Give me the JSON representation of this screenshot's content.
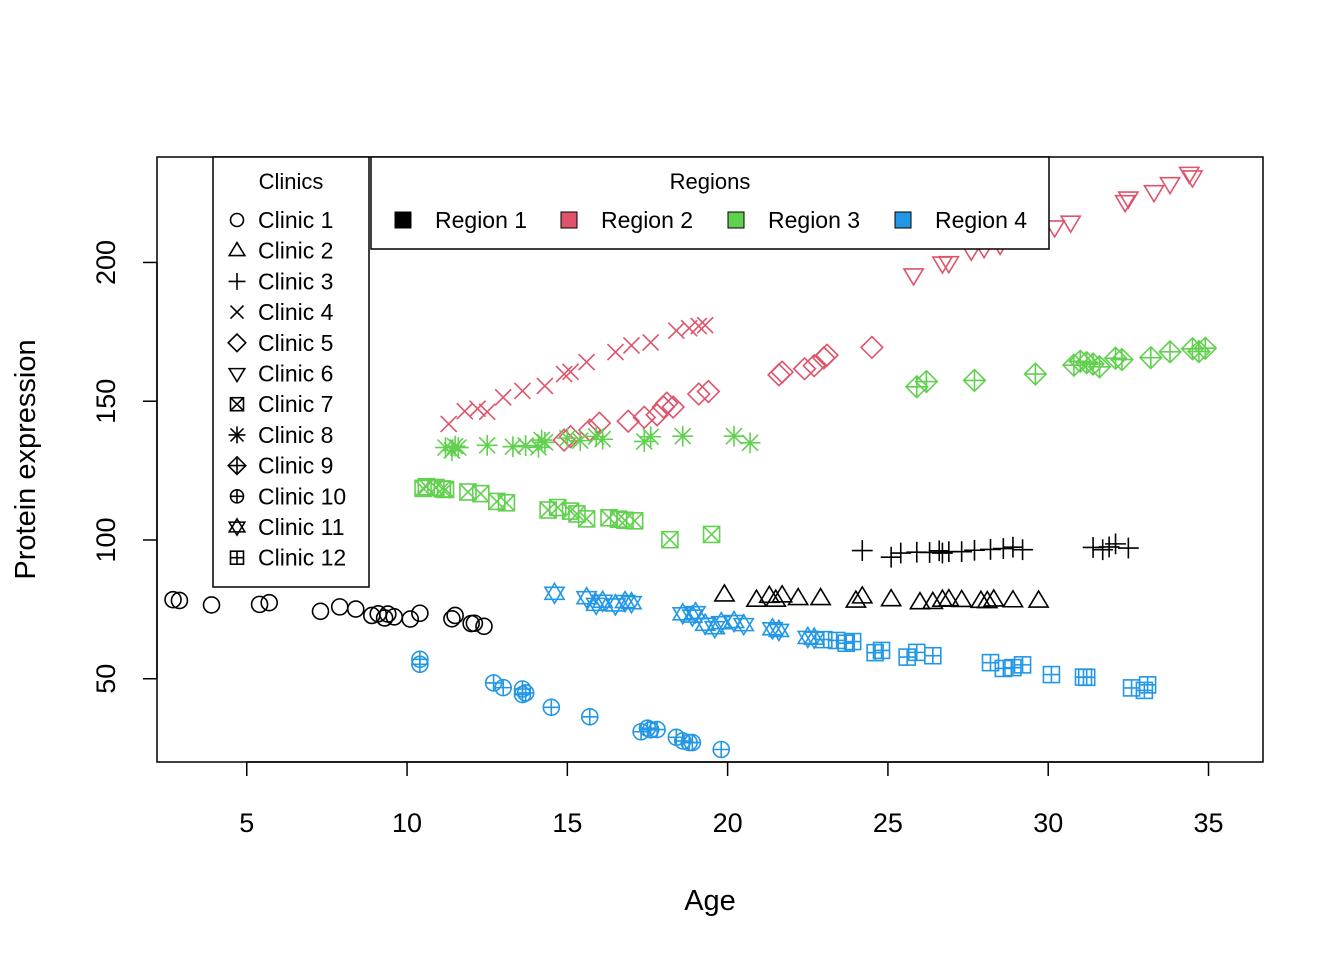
{
  "chart_data": {
    "type": "scatter",
    "xlabel": "Age",
    "ylabel": "Protein expression",
    "xlim": [
      2.2,
      36.7
    ],
    "ylim": [
      20,
      238
    ],
    "x_ticks": [
      5,
      10,
      15,
      20,
      25,
      30,
      35
    ],
    "y_ticks": [
      50,
      100,
      150,
      200
    ],
    "grid": false,
    "colors": {
      "Region 1": "#000000",
      "Region 2": "#DF536B",
      "Region 3": "#61D04F",
      "Region 4": "#2297E6"
    },
    "legend_clinics": {
      "title": "Clinics",
      "position": "top-left",
      "entries": [
        {
          "label": "Clinic 1",
          "symbol": "circle"
        },
        {
          "label": "Clinic 2",
          "symbol": "triangle-up"
        },
        {
          "label": "Clinic 3",
          "symbol": "plus"
        },
        {
          "label": "Clinic 4",
          "symbol": "cross"
        },
        {
          "label": "Clinic 5",
          "symbol": "diamond"
        },
        {
          "label": "Clinic 6",
          "symbol": "triangle-down"
        },
        {
          "label": "Clinic 7",
          "symbol": "square-cross"
        },
        {
          "label": "Clinic 8",
          "symbol": "asterisk"
        },
        {
          "label": "Clinic 9",
          "symbol": "diamond-plus"
        },
        {
          "label": "Clinic 10",
          "symbol": "circle-plus"
        },
        {
          "label": "Clinic 11",
          "symbol": "star-of-david"
        },
        {
          "label": "Clinic 12",
          "symbol": "square-plus"
        }
      ]
    },
    "legend_regions": {
      "title": "Regions",
      "position": "top",
      "entries": [
        "Region 1",
        "Region 2",
        "Region 3",
        "Region 4"
      ]
    },
    "series": [
      {
        "clinic": "Clinic 1",
        "region": "Region 1",
        "x": [
          2.7,
          2.9,
          3.9,
          5.4,
          5.7,
          7.3,
          7.9,
          8.4,
          8.9,
          9.1,
          9.3,
          9.4,
          9.6,
          10.1,
          10.4,
          11.4,
          11.5,
          12.0,
          12.1,
          12.4
        ],
        "y": [
          78.5,
          78.2,
          76.6,
          76.8,
          77.4,
          74.3,
          75.9,
          75.1,
          72.8,
          73.4,
          71.9,
          73.3,
          72.3,
          71.5,
          73.6,
          71.6,
          72.8,
          69.9,
          70.0,
          68.9
        ]
      },
      {
        "clinic": "Clinic 2",
        "region": "Region 1",
        "x": [
          19.9,
          20.9,
          21.3,
          21.5,
          21.7,
          22.2,
          22.9,
          24.0,
          24.2,
          25.1,
          26.0,
          26.4,
          26.7,
          26.9,
          27.3,
          27.9,
          28.1,
          28.3,
          28.9,
          29.7
        ],
        "y": [
          80.2,
          78.3,
          79.7,
          78.3,
          79.9,
          78.9,
          78.9,
          78.0,
          79.5,
          78.5,
          77.4,
          77.5,
          78.3,
          78.5,
          78.2,
          77.9,
          77.8,
          78.4,
          78.1,
          78.0
        ]
      },
      {
        "clinic": "Clinic 3",
        "region": "Region 1",
        "x": [
          24.2,
          25.1,
          25.4,
          25.9,
          26.3,
          26.6,
          26.7,
          26.9,
          27.3,
          27.7,
          28.2,
          28.6,
          28.9,
          29.2,
          31.4,
          31.7,
          31.9,
          32.1,
          32.5
        ],
        "y": [
          96.2,
          93.8,
          95.3,
          95.6,
          95.5,
          96.1,
          95.3,
          95.8,
          95.8,
          96.3,
          96.6,
          96.9,
          97.4,
          96.5,
          97.3,
          96.5,
          97.5,
          98.6,
          97.1
        ]
      },
      {
        "clinic": "Clinic 4",
        "region": "Region 2",
        "x": [
          11.3,
          11.8,
          12.2,
          12.5,
          13.0,
          13.6,
          14.3,
          14.9,
          15.1,
          15.6,
          16.5,
          17.0,
          17.6,
          18.4,
          18.8,
          19.1,
          19.3
        ],
        "y": [
          141.8,
          146.4,
          147.3,
          146.2,
          151.4,
          153.7,
          155.5,
          159.8,
          160.6,
          164.1,
          167.7,
          170.1,
          171.2,
          175.4,
          176.3,
          177.1,
          177.4
        ]
      },
      {
        "clinic": "Clinic 5",
        "region": "Region 2",
        "x": [
          14.9,
          15.1,
          15.7,
          16.0,
          16.9,
          17.4,
          17.8,
          18.0,
          18.1,
          18.3,
          19.1,
          19.4,
          21.6,
          21.7,
          22.4,
          22.7,
          23.0,
          23.1,
          24.5
        ],
        "y": [
          136.0,
          137.2,
          139.6,
          142.1,
          142.8,
          144.2,
          145.1,
          147.9,
          149.3,
          147.9,
          152.6,
          153.5,
          159.5,
          160.5,
          161.7,
          162.8,
          165.6,
          166.6,
          169.4
        ]
      },
      {
        "clinic": "Clinic 6",
        "region": "Region 2",
        "x": [
          25.8,
          26.7,
          26.9,
          27.6,
          28.0,
          28.5,
          29.2,
          30.2,
          30.7,
          32.4,
          32.5,
          33.3,
          33.8,
          34.4,
          34.5
        ],
        "y": [
          195.5,
          199.8,
          199.9,
          204.4,
          205.3,
          206.5,
          209.4,
          212.8,
          214.5,
          221.9,
          223.2,
          225.5,
          228.4,
          232.1,
          230.8
        ]
      },
      {
        "clinic": "Clinic 7",
        "region": "Region 3",
        "x": [
          10.5,
          10.6,
          10.9,
          11.1,
          11.2,
          11.9,
          12.3,
          12.8,
          13.1,
          14.4,
          14.7,
          15.1,
          15.3,
          15.6,
          16.3,
          16.6,
          16.8,
          17.1,
          18.2,
          19.5
        ],
        "y": [
          118.6,
          119.2,
          118.9,
          118.4,
          118.2,
          117.3,
          116.7,
          113.9,
          113.4,
          110.8,
          111.7,
          110.4,
          109.4,
          107.6,
          108.0,
          107.5,
          107.1,
          106.9,
          100.1,
          102.0
        ]
      },
      {
        "clinic": "Clinic 8",
        "region": "Region 3",
        "x": [
          11.2,
          11.4,
          11.5,
          11.6,
          12.5,
          13.3,
          13.7,
          14.1,
          14.2,
          14.3,
          15.0,
          15.4,
          15.9,
          16.1,
          17.4,
          17.6,
          18.6,
          20.2,
          20.7
        ],
        "y": [
          133.3,
          132.2,
          133.8,
          133.3,
          134.1,
          133.6,
          134.0,
          133.4,
          136.0,
          135.2,
          136.7,
          135.8,
          137.3,
          136.3,
          135.5,
          137.2,
          137.4,
          137.4,
          135.0
        ]
      },
      {
        "clinic": "Clinic 9",
        "region": "Region 3",
        "x": [
          25.9,
          26.2,
          27.7,
          29.6,
          30.8,
          31.0,
          31.2,
          31.4,
          31.6,
          32.1,
          32.3,
          33.2,
          33.8,
          34.5,
          34.7,
          34.9
        ],
        "y": [
          155.2,
          157.1,
          157.5,
          159.8,
          163.0,
          164.4,
          163.9,
          163.4,
          162.4,
          165.5,
          165.0,
          165.7,
          167.8,
          168.9,
          167.9,
          169.1
        ]
      },
      {
        "clinic": "Clinic 10",
        "region": "Region 4",
        "x": [
          10.4,
          10.4,
          12.7,
          13.0,
          13.6,
          13.6,
          13.7,
          14.5,
          15.7,
          17.3,
          17.5,
          17.6,
          17.8,
          18.4,
          18.6,
          18.8,
          18.9,
          19.8
        ],
        "y": [
          57.0,
          55.2,
          48.5,
          46.8,
          46.3,
          44.3,
          44.9,
          39.7,
          36.3,
          30.9,
          32.2,
          31.6,
          31.7,
          28.9,
          27.6,
          27.0,
          27.0,
          24.5
        ]
      },
      {
        "clinic": "Clinic 11",
        "region": "Region 4",
        "x": [
          14.6,
          15.6,
          15.9,
          16.1,
          16.5,
          16.8,
          17.0,
          18.6,
          18.9,
          19.0,
          19.3,
          19.6,
          19.8,
          20.2,
          20.5,
          21.4,
          21.6,
          22.5,
          22.7
        ],
        "y": [
          80.8,
          79.2,
          76.8,
          77.9,
          76.6,
          77.8,
          77.4,
          73.4,
          72.6,
          73.8,
          69.6,
          68.4,
          70.2,
          70.6,
          69.5,
          68.0,
          67.4,
          64.9,
          64.6
        ]
      },
      {
        "clinic": "Clinic 12",
        "region": "Region 4",
        "x": [
          23.0,
          23.4,
          23.7,
          23.9,
          24.6,
          24.8,
          25.6,
          25.9,
          26.4,
          28.2,
          28.6,
          28.9,
          29.2,
          30.1,
          31.1,
          31.2,
          32.6,
          33.0,
          33.1
        ],
        "y": [
          64.1,
          63.8,
          62.8,
          63.4,
          59.4,
          60.2,
          57.8,
          59.5,
          58.3,
          55.8,
          53.7,
          54.0,
          55.0,
          51.5,
          50.6,
          50.5,
          46.7,
          45.8,
          47.8
        ]
      }
    ]
  }
}
